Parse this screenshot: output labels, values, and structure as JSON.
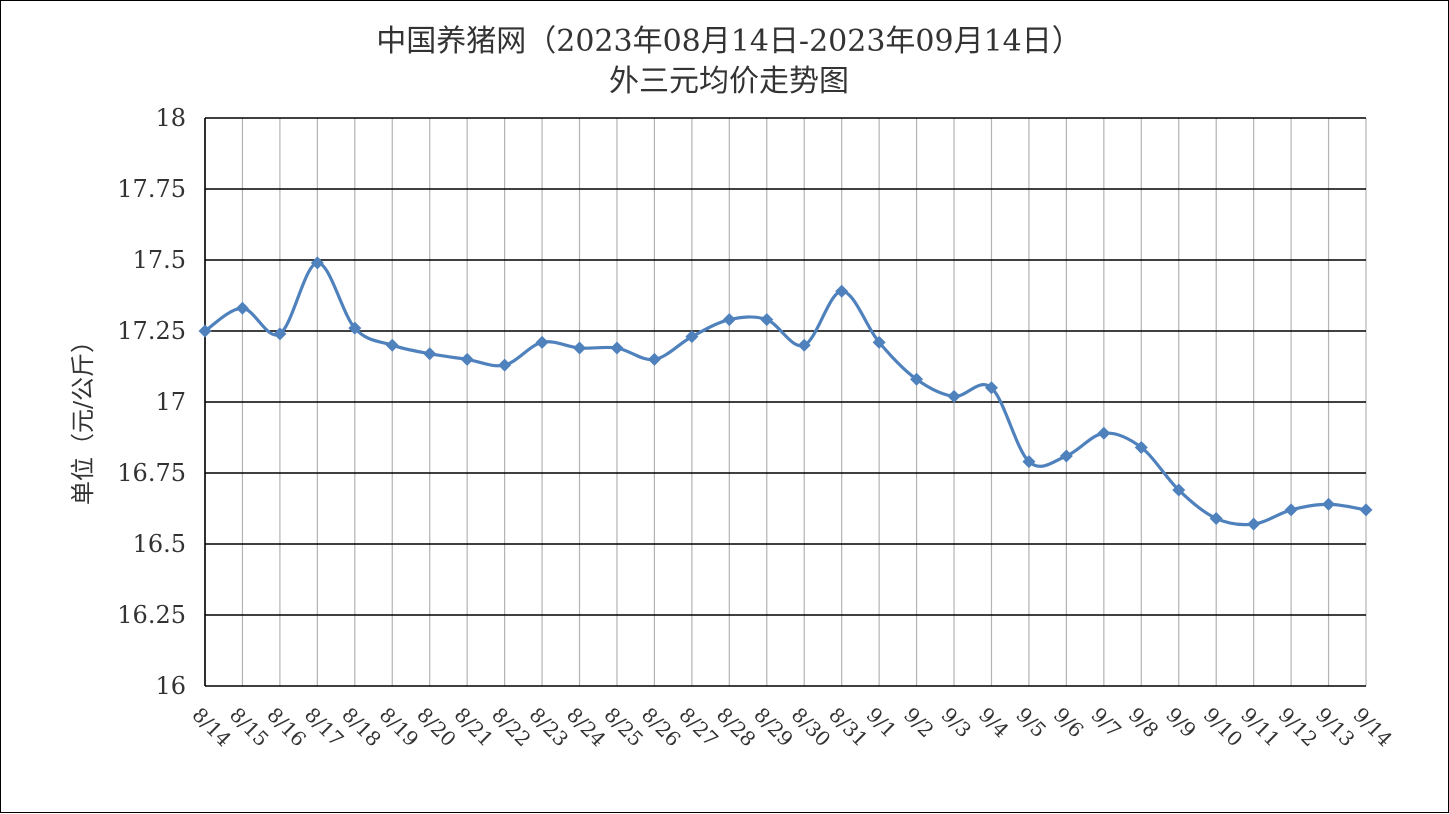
{
  "chart_data": {
    "type": "line",
    "title": "中国养猪网（2023年08月14日-2023年09月14日）",
    "subtitle": "外三元均价走势图",
    "ylabel": "单位（元/公斤）",
    "xlabel": "",
    "ylim": [
      16,
      18
    ],
    "yticks": [
      16,
      16.25,
      16.5,
      16.75,
      17,
      17.25,
      17.5,
      17.75,
      18
    ],
    "ytick_labels": [
      "16",
      "16.25",
      "16.5",
      "16.75",
      "17",
      "17.25",
      "17.5",
      "17.75",
      "18"
    ],
    "grid": "both",
    "legend": "none",
    "line_color": "#4F81BD",
    "categories": [
      "8/14",
      "8/15",
      "8/16",
      "8/17",
      "8/18",
      "8/19",
      "8/20",
      "8/21",
      "8/22",
      "8/23",
      "8/24",
      "8/25",
      "8/26",
      "8/27",
      "8/28",
      "8/29",
      "8/30",
      "8/31",
      "9/1",
      "9/2",
      "9/3",
      "9/4",
      "9/5",
      "9/6",
      "9/7",
      "9/8",
      "9/9",
      "9/10",
      "9/11",
      "9/12",
      "9/13",
      "9/14"
    ],
    "series": [
      {
        "values": [
          17.25,
          17.33,
          17.24,
          17.49,
          17.26,
          17.2,
          17.17,
          17.15,
          17.13,
          17.21,
          17.19,
          17.19,
          17.15,
          17.23,
          17.29,
          17.29,
          17.2,
          17.39,
          17.21,
          17.08,
          17.02,
          17.05,
          16.79,
          16.81,
          16.89,
          16.84,
          16.69,
          16.59,
          16.57,
          16.62,
          16.64,
          16.62
        ]
      }
    ]
  }
}
